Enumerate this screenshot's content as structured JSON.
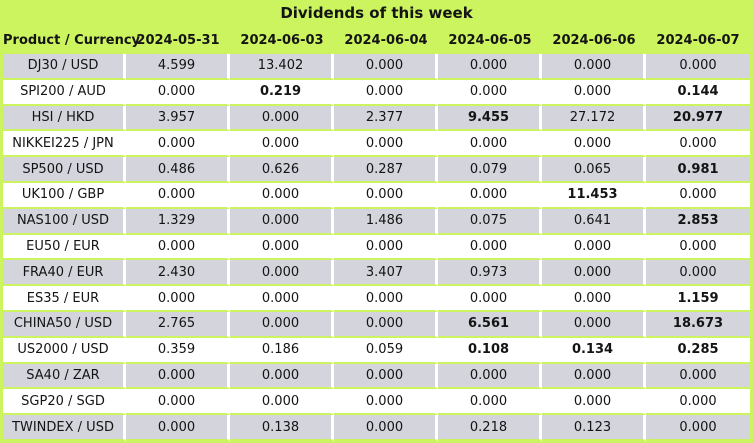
{
  "title": "Dividends of this week",
  "colors": {
    "background": "#ccf45f",
    "row_alternate": "#d3d4dc",
    "row_plain": "#ffffff",
    "text": "#141414",
    "cell_divider_vertical": "#ffffff"
  },
  "table": {
    "product_header": "Product / Currency",
    "date_headers": [
      "2024-05-31",
      "2024-06-03",
      "2024-06-04",
      "2024-06-05",
      "2024-06-06",
      "2024-06-07"
    ],
    "rows": [
      {
        "product": "DJ30 / USD",
        "values": [
          "4.599",
          "13.402",
          "0.000",
          "0.000",
          "0.000",
          "0.000"
        ],
        "bold": []
      },
      {
        "product": "SPI200 / AUD",
        "values": [
          "0.000",
          "0.219",
          "0.000",
          "0.000",
          "0.000",
          "0.144"
        ],
        "bold": [
          1,
          5
        ]
      },
      {
        "product": "HSI / HKD",
        "values": [
          "3.957",
          "0.000",
          "2.377",
          "9.455",
          "27.172",
          "20.977"
        ],
        "bold": [
          3,
          5
        ]
      },
      {
        "product": "NIKKEI225 / JPN",
        "values": [
          "0.000",
          "0.000",
          "0.000",
          "0.000",
          "0.000",
          "0.000"
        ],
        "bold": []
      },
      {
        "product": "SP500 / USD",
        "values": [
          "0.486",
          "0.626",
          "0.287",
          "0.079",
          "0.065",
          "0.981"
        ],
        "bold": [
          5
        ]
      },
      {
        "product": "UK100 / GBP",
        "values": [
          "0.000",
          "0.000",
          "0.000",
          "0.000",
          "11.453",
          "0.000"
        ],
        "bold": [
          4
        ]
      },
      {
        "product": "NAS100 / USD",
        "values": [
          "1.329",
          "0.000",
          "1.486",
          "0.075",
          "0.641",
          "2.853"
        ],
        "bold": [
          5
        ]
      },
      {
        "product": "EU50 / EUR",
        "values": [
          "0.000",
          "0.000",
          "0.000",
          "0.000",
          "0.000",
          "0.000"
        ],
        "bold": []
      },
      {
        "product": "FRA40 / EUR",
        "values": [
          "2.430",
          "0.000",
          "3.407",
          "0.973",
          "0.000",
          "0.000"
        ],
        "bold": []
      },
      {
        "product": "ES35 / EUR",
        "values": [
          "0.000",
          "0.000",
          "0.000",
          "0.000",
          "0.000",
          "1.159"
        ],
        "bold": [
          5
        ]
      },
      {
        "product": "CHINA50 / USD",
        "values": [
          "2.765",
          "0.000",
          "0.000",
          "6.561",
          "0.000",
          "18.673"
        ],
        "bold": [
          3,
          5
        ]
      },
      {
        "product": "US2000 / USD",
        "values": [
          "0.359",
          "0.186",
          "0.059",
          "0.108",
          "0.134",
          "0.285"
        ],
        "bold": [
          3,
          4,
          5
        ]
      },
      {
        "product": "SA40 / ZAR",
        "values": [
          "0.000",
          "0.000",
          "0.000",
          "0.000",
          "0.000",
          "0.000"
        ],
        "bold": []
      },
      {
        "product": "SGP20 / SGD",
        "values": [
          "0.000",
          "0.000",
          "0.000",
          "0.000",
          "0.000",
          "0.000"
        ],
        "bold": []
      },
      {
        "product": "TWINDEX / USD",
        "values": [
          "0.000",
          "0.138",
          "0.000",
          "0.218",
          "0.123",
          "0.000"
        ],
        "bold": []
      }
    ]
  },
  "chart_data": {
    "type": "table",
    "title": "Dividends of this week",
    "columns": [
      "Product / Currency",
      "2024-05-31",
      "2024-06-03",
      "2024-06-04",
      "2024-06-05",
      "2024-06-06",
      "2024-06-07"
    ],
    "rows": [
      [
        "DJ30 / USD",
        4.599,
        13.402,
        0.0,
        0.0,
        0.0,
        0.0
      ],
      [
        "SPI200 / AUD",
        0.0,
        0.219,
        0.0,
        0.0,
        0.0,
        0.144
      ],
      [
        "HSI / HKD",
        3.957,
        0.0,
        2.377,
        9.455,
        27.172,
        20.977
      ],
      [
        "NIKKEI225 / JPN",
        0.0,
        0.0,
        0.0,
        0.0,
        0.0,
        0.0
      ],
      [
        "SP500 / USD",
        0.486,
        0.626,
        0.287,
        0.079,
        0.065,
        0.981
      ],
      [
        "UK100 / GBP",
        0.0,
        0.0,
        0.0,
        0.0,
        11.453,
        0.0
      ],
      [
        "NAS100 / USD",
        1.329,
        0.0,
        1.486,
        0.075,
        0.641,
        2.853
      ],
      [
        "EU50 / EUR",
        0.0,
        0.0,
        0.0,
        0.0,
        0.0,
        0.0
      ],
      [
        "FRA40 / EUR",
        2.43,
        0.0,
        3.407,
        0.973,
        0.0,
        0.0
      ],
      [
        "ES35 / EUR",
        0.0,
        0.0,
        0.0,
        0.0,
        0.0,
        1.159
      ],
      [
        "CHINA50 / USD",
        2.765,
        0.0,
        0.0,
        6.561,
        0.0,
        18.673
      ],
      [
        "US2000 / USD",
        0.359,
        0.186,
        0.059,
        0.108,
        0.134,
        0.285
      ],
      [
        "SA40 / ZAR",
        0.0,
        0.0,
        0.0,
        0.0,
        0.0,
        0.0
      ],
      [
        "SGP20 / SGD",
        0.0,
        0.0,
        0.0,
        0.0,
        0.0,
        0.0
      ],
      [
        "TWINDEX / USD",
        0.0,
        0.138,
        0.0,
        0.218,
        0.123,
        0.0
      ]
    ]
  }
}
